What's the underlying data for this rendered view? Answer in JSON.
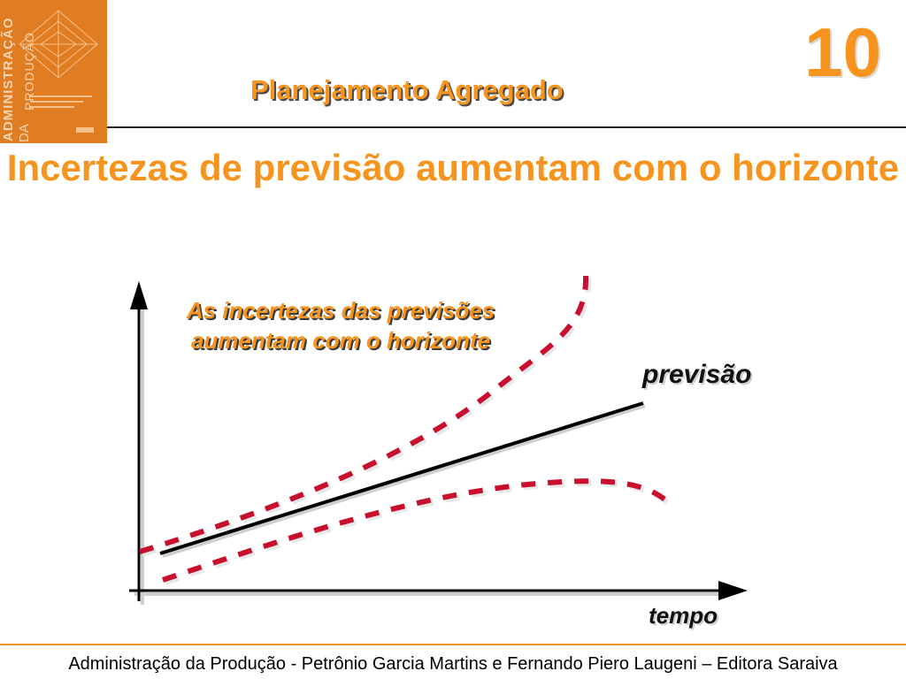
{
  "cover": {
    "line1": "ADMINISTRAÇÃO",
    "line2": "DA",
    "line3": "PRODUÇÃO"
  },
  "header": {
    "chapter": "10",
    "section_title": "Planejamento Agregado"
  },
  "slide": {
    "title": "Incertezas de previsão aumentam com o horizonte"
  },
  "diagram": {
    "annotation": "As incertezas das previsões aumentam com o horizonte",
    "forecast_label": "previsão",
    "time_axis_label": "tempo"
  },
  "footer": {
    "text": "Administração da Produção - Petrônio Garcia Martins e Fernando Piero Laugeni – Editora Saraiva"
  },
  "colors": {
    "accent": "#f7941d",
    "cover": "#e07c22",
    "dash_red": "#c8102e"
  }
}
